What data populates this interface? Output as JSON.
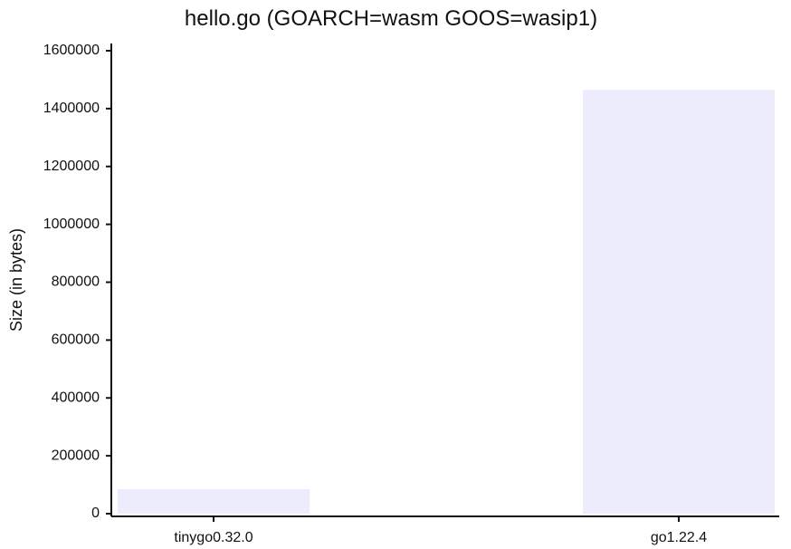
{
  "chart_data": {
    "type": "bar",
    "title": "hello.go (GOARCH=wasm GOOS=wasip1)",
    "xlabel": "",
    "ylabel": "Size (in bytes)",
    "categories": [
      "tinygo0.32.0",
      "go1.22.4"
    ],
    "values": [
      85000,
      1465000
    ],
    "ylim": [
      0,
      1600000
    ],
    "yticks": [
      0,
      200000,
      400000,
      600000,
      800000,
      1000000,
      1200000,
      1400000,
      1600000
    ],
    "ytick_labels": [
      "0",
      "200000",
      "400000",
      "600000",
      "800000",
      "1000000",
      "1200000",
      "1400000",
      "1600000"
    ],
    "bar_color": "#ececfd",
    "grid": false
  }
}
